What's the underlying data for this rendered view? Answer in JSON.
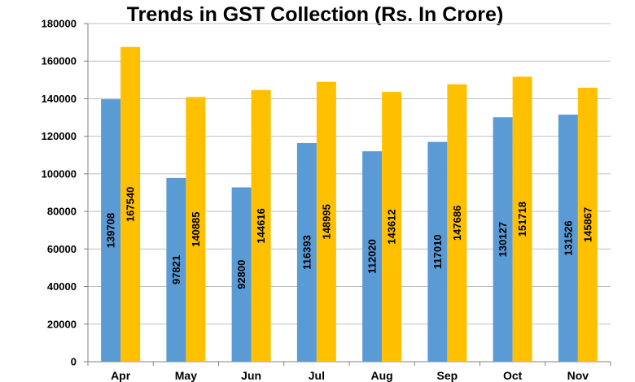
{
  "chart_data": {
    "type": "bar",
    "title": "Trends in GST Collection (Rs. In Crore)",
    "categories": [
      "Apr",
      "May",
      "Jun",
      "Jul",
      "Aug",
      "Sep",
      "Oct",
      "Nov"
    ],
    "series": [
      {
        "values": [
          139708,
          97821,
          92800,
          116393,
          112020,
          117010,
          130127,
          131526
        ],
        "color": "#5b9bd5"
      },
      {
        "values": [
          167540,
          140885,
          144616,
          148995,
          143612,
          147686,
          151718,
          145867
        ],
        "color": "#ffc000"
      }
    ],
    "ylim": [
      0,
      180000
    ],
    "yticks": [
      0,
      20000,
      40000,
      60000,
      80000,
      100000,
      120000,
      140000,
      160000,
      180000
    ],
    "grid": true,
    "data_labels": "vertical-inside",
    "legend": "none"
  }
}
